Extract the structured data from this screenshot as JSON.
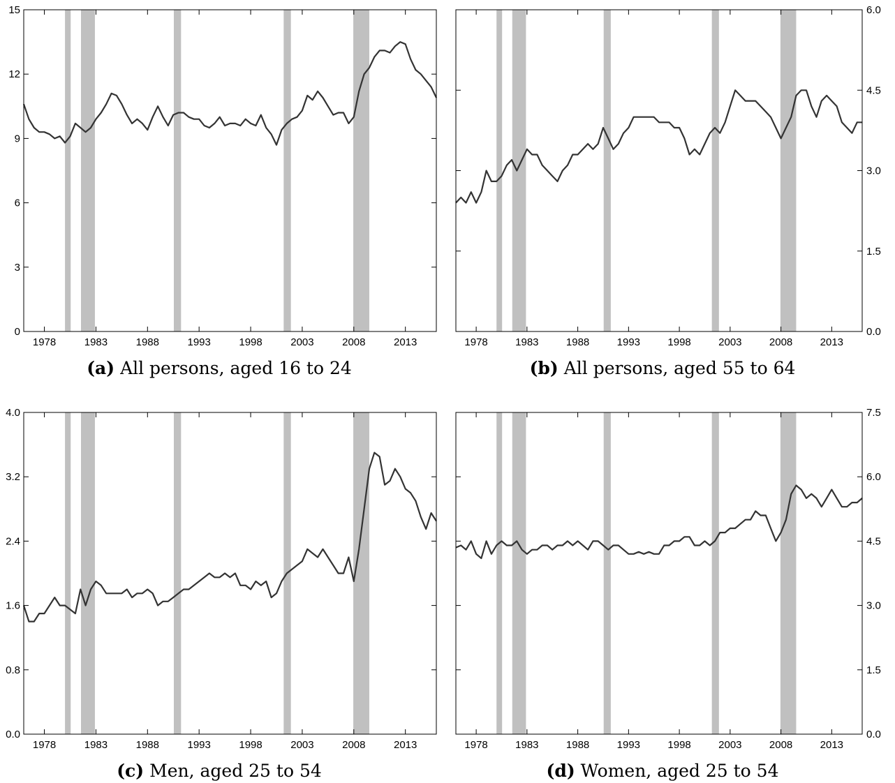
{
  "figure": {
    "line_color": "#333333",
    "recession_color": "#c0c0c0"
  },
  "chart_data": [
    {
      "type": "line",
      "caption_letter": "(a)",
      "caption_text": "All persons, aged 16 to 24",
      "y_axis_side": "left",
      "xlim": [
        1976.0,
        2016.0
      ],
      "ylim": [
        0,
        15
      ],
      "x_ticks": [
        1978,
        1983,
        1988,
        1993,
        1998,
        2003,
        2008,
        2013
      ],
      "y_ticks": [
        0,
        3,
        6,
        9,
        12,
        15
      ],
      "y_tick_labels": [
        "0",
        "3",
        "6",
        "9",
        "12",
        "15"
      ],
      "recessions": [
        [
          1980.0,
          1980.55
        ],
        [
          1981.55,
          1982.9
        ],
        [
          1990.55,
          1991.25
        ],
        [
          2001.2,
          2001.9
        ],
        [
          2007.95,
          2009.5
        ]
      ],
      "series": [
        {
          "x": [
            1976.0,
            1976.5,
            1977.0,
            1977.5,
            1978.0,
            1978.5,
            1979.0,
            1979.5,
            1980.0,
            1980.5,
            1981.0,
            1981.5,
            1982.0,
            1982.5,
            1983.0,
            1983.5,
            1984.0,
            1984.5,
            1985.0,
            1985.5,
            1986.0,
            1986.5,
            1987.0,
            1987.5,
            1988.0,
            1988.5,
            1989.0,
            1989.5,
            1990.0,
            1990.5,
            1991.0,
            1991.5,
            1992.0,
            1992.5,
            1993.0,
            1993.5,
            1994.0,
            1994.5,
            1995.0,
            1995.5,
            1996.0,
            1996.5,
            1997.0,
            1997.5,
            1998.0,
            1998.5,
            1999.0,
            1999.5,
            2000.0,
            2000.5,
            2001.0,
            2001.5,
            2002.0,
            2002.5,
            2003.0,
            2003.5,
            2004.0,
            2004.5,
            2005.0,
            2005.5,
            2006.0,
            2006.5,
            2007.0,
            2007.5,
            2008.0,
            2008.5,
            2009.0,
            2009.5,
            2010.0,
            2010.5,
            2011.0,
            2011.5,
            2012.0,
            2012.5,
            2013.0,
            2013.5,
            2014.0,
            2014.5,
            2015.0,
            2015.5,
            2016.0
          ],
          "values": [
            10.6,
            9.9,
            9.5,
            9.3,
            9.3,
            9.2,
            9.0,
            9.1,
            8.8,
            9.1,
            9.7,
            9.5,
            9.3,
            9.5,
            9.9,
            10.2,
            10.6,
            11.1,
            11.0,
            10.6,
            10.1,
            9.7,
            9.9,
            9.7,
            9.4,
            10.0,
            10.5,
            10.0,
            9.6,
            10.1,
            10.2,
            10.2,
            10.0,
            9.9,
            9.9,
            9.6,
            9.5,
            9.7,
            10.0,
            9.6,
            9.7,
            9.7,
            9.6,
            9.9,
            9.7,
            9.6,
            10.1,
            9.5,
            9.2,
            8.7,
            9.4,
            9.7,
            9.9,
            10.0,
            10.3,
            11.0,
            10.8,
            11.2,
            10.9,
            10.5,
            10.1,
            10.2,
            10.2,
            9.7,
            10.0,
            11.2,
            12.0,
            12.3,
            12.8,
            13.1,
            13.1,
            13.0,
            13.3,
            13.5,
            13.4,
            12.7,
            12.2,
            12.0,
            11.7,
            11.4,
            10.9
          ]
        }
      ]
    },
    {
      "type": "line",
      "caption_letter": "(b)",
      "caption_text": "All persons, aged 55 to 64",
      "y_axis_side": "right",
      "xlim": [
        1976.0,
        2016.0
      ],
      "ylim": [
        0,
        6.0
      ],
      "x_ticks": [
        1978,
        1983,
        1988,
        1993,
        1998,
        2003,
        2008,
        2013
      ],
      "y_ticks": [
        0,
        1.5,
        3.0,
        4.5,
        6.0
      ],
      "y_tick_labels": [
        "0.0",
        "1.5",
        "3.0",
        "4.5",
        "6.0"
      ],
      "recessions": [
        [
          1980.0,
          1980.55
        ],
        [
          1981.55,
          1982.9
        ],
        [
          1990.55,
          1991.25
        ],
        [
          2001.2,
          2001.9
        ],
        [
          2007.95,
          2009.5
        ]
      ],
      "series": [
        {
          "x": [
            1976.0,
            1976.5,
            1977.0,
            1977.5,
            1978.0,
            1978.5,
            1979.0,
            1979.5,
            1980.0,
            1980.5,
            1981.0,
            1981.5,
            1982.0,
            1982.5,
            1983.0,
            1983.5,
            1984.0,
            1984.5,
            1985.0,
            1985.5,
            1986.0,
            1986.5,
            1987.0,
            1987.5,
            1988.0,
            1988.5,
            1989.0,
            1989.5,
            1990.0,
            1990.5,
            1991.0,
            1991.5,
            1992.0,
            1992.5,
            1993.0,
            1993.5,
            1994.0,
            1994.5,
            1995.0,
            1995.5,
            1996.0,
            1996.5,
            1997.0,
            1997.5,
            1998.0,
            1998.5,
            1999.0,
            1999.5,
            2000.0,
            2000.5,
            2001.0,
            2001.5,
            2002.0,
            2002.5,
            2003.0,
            2003.5,
            2004.0,
            2004.5,
            2005.0,
            2005.5,
            2006.0,
            2006.5,
            2007.0,
            2007.5,
            2008.0,
            2008.5,
            2009.0,
            2009.5,
            2010.0,
            2010.5,
            2011.0,
            2011.5,
            2012.0,
            2012.5,
            2013.0,
            2013.5,
            2014.0,
            2014.5,
            2015.0,
            2015.5,
            2016.0
          ],
          "values": [
            2.4,
            2.5,
            2.4,
            2.6,
            2.4,
            2.6,
            3.0,
            2.8,
            2.8,
            2.9,
            3.1,
            3.2,
            3.0,
            3.2,
            3.4,
            3.3,
            3.3,
            3.1,
            3.0,
            2.9,
            2.8,
            3.0,
            3.1,
            3.3,
            3.3,
            3.4,
            3.5,
            3.4,
            3.5,
            3.8,
            3.6,
            3.4,
            3.5,
            3.7,
            3.8,
            4.0,
            4.0,
            4.0,
            4.0,
            4.0,
            3.9,
            3.9,
            3.9,
            3.8,
            3.8,
            3.6,
            3.3,
            3.4,
            3.3,
            3.5,
            3.7,
            3.8,
            3.7,
            3.9,
            4.2,
            4.5,
            4.4,
            4.3,
            4.3,
            4.3,
            4.2,
            4.1,
            4.0,
            3.8,
            3.6,
            3.8,
            4.0,
            4.4,
            4.5,
            4.5,
            4.2,
            4.0,
            4.3,
            4.4,
            4.3,
            4.2,
            3.9,
            3.8,
            3.7,
            3.9,
            3.9
          ]
        }
      ]
    },
    {
      "type": "line",
      "caption_letter": "(c)",
      "caption_text": "Men, aged 25 to 54",
      "y_axis_side": "left",
      "xlim": [
        1976.0,
        2016.0
      ],
      "ylim": [
        0,
        4.0
      ],
      "x_ticks": [
        1978,
        1983,
        1988,
        1993,
        1998,
        2003,
        2008,
        2013
      ],
      "y_ticks": [
        0,
        0.8,
        1.6,
        2.4,
        3.2,
        4.0
      ],
      "y_tick_labels": [
        "0.0",
        "0.8",
        "1.6",
        "2.4",
        "3.2",
        "4.0"
      ],
      "recessions": [
        [
          1980.0,
          1980.55
        ],
        [
          1981.55,
          1982.9
        ],
        [
          1990.55,
          1991.25
        ],
        [
          2001.2,
          2001.9
        ],
        [
          2007.95,
          2009.5
        ]
      ],
      "series": [
        {
          "x": [
            1976.0,
            1976.5,
            1977.0,
            1977.5,
            1978.0,
            1978.5,
            1979.0,
            1979.5,
            1980.0,
            1980.5,
            1981.0,
            1981.5,
            1982.0,
            1982.5,
            1983.0,
            1983.5,
            1984.0,
            1984.5,
            1985.0,
            1985.5,
            1986.0,
            1986.5,
            1987.0,
            1987.5,
            1988.0,
            1988.5,
            1989.0,
            1989.5,
            1990.0,
            1990.5,
            1991.0,
            1991.5,
            1992.0,
            1992.5,
            1993.0,
            1993.5,
            1994.0,
            1994.5,
            1995.0,
            1995.5,
            1996.0,
            1996.5,
            1997.0,
            1997.5,
            1998.0,
            1998.5,
            1999.0,
            1999.5,
            2000.0,
            2000.5,
            2001.0,
            2001.5,
            2002.0,
            2002.5,
            2003.0,
            2003.5,
            2004.0,
            2004.5,
            2005.0,
            2005.5,
            2006.0,
            2006.5,
            2007.0,
            2007.5,
            2008.0,
            2008.5,
            2009.0,
            2009.5,
            2010.0,
            2010.5,
            2011.0,
            2011.5,
            2012.0,
            2012.5,
            2013.0,
            2013.5,
            2014.0,
            2014.5,
            2015.0,
            2015.5,
            2016.0
          ],
          "values": [
            1.6,
            1.4,
            1.4,
            1.5,
            1.5,
            1.6,
            1.7,
            1.6,
            1.6,
            1.55,
            1.5,
            1.8,
            1.6,
            1.8,
            1.9,
            1.85,
            1.75,
            1.75,
            1.75,
            1.75,
            1.8,
            1.7,
            1.75,
            1.75,
            1.8,
            1.75,
            1.6,
            1.65,
            1.65,
            1.7,
            1.75,
            1.8,
            1.8,
            1.85,
            1.9,
            1.95,
            2.0,
            1.95,
            1.95,
            2.0,
            1.95,
            2.0,
            1.85,
            1.85,
            1.8,
            1.9,
            1.85,
            1.9,
            1.7,
            1.75,
            1.9,
            2.0,
            2.05,
            2.1,
            2.15,
            2.3,
            2.25,
            2.2,
            2.3,
            2.2,
            2.1,
            2.0,
            2.0,
            2.2,
            1.9,
            2.3,
            2.8,
            3.3,
            3.5,
            3.45,
            3.1,
            3.15,
            3.3,
            3.2,
            3.05,
            3.0,
            2.9,
            2.7,
            2.55,
            2.75,
            2.65
          ]
        }
      ]
    },
    {
      "type": "line",
      "caption_letter": "(d)",
      "caption_text": "Women, aged 25 to 54",
      "y_axis_side": "right",
      "xlim": [
        1976.0,
        2016.0
      ],
      "ylim": [
        0,
        7.5
      ],
      "x_ticks": [
        1978,
        1983,
        1988,
        1993,
        1998,
        2003,
        2008,
        2013
      ],
      "y_ticks": [
        0,
        1.5,
        3.0,
        4.5,
        6.0,
        7.5
      ],
      "y_tick_labels": [
        "0.0",
        "1.5",
        "3.0",
        "4.5",
        "6.0",
        "7.5"
      ],
      "recessions": [
        [
          1980.0,
          1980.55
        ],
        [
          1981.55,
          1982.9
        ],
        [
          1990.55,
          1991.25
        ],
        [
          2001.2,
          2001.9
        ],
        [
          2007.95,
          2009.5
        ]
      ],
      "series": [
        {
          "x": [
            1976.0,
            1976.5,
            1977.0,
            1977.5,
            1978.0,
            1978.5,
            1979.0,
            1979.5,
            1980.0,
            1980.5,
            1981.0,
            1981.5,
            1982.0,
            1982.5,
            1983.0,
            1983.5,
            1984.0,
            1984.5,
            1985.0,
            1985.5,
            1986.0,
            1986.5,
            1987.0,
            1987.5,
            1988.0,
            1988.5,
            1989.0,
            1989.5,
            1990.0,
            1990.5,
            1991.0,
            1991.5,
            1992.0,
            1992.5,
            1993.0,
            1993.5,
            1994.0,
            1994.5,
            1995.0,
            1995.5,
            1996.0,
            1996.5,
            1997.0,
            1997.5,
            1998.0,
            1998.5,
            1999.0,
            1999.5,
            2000.0,
            2000.5,
            2001.0,
            2001.5,
            2002.0,
            2002.5,
            2003.0,
            2003.5,
            2004.0,
            2004.5,
            2005.0,
            2005.5,
            2006.0,
            2006.5,
            2007.0,
            2007.5,
            2008.0,
            2008.5,
            2009.0,
            2009.5,
            2010.0,
            2010.5,
            2011.0,
            2011.5,
            2012.0,
            2012.5,
            2013.0,
            2013.5,
            2014.0,
            2014.5,
            2015.0,
            2015.5,
            2016.0
          ],
          "values": [
            4.35,
            4.4,
            4.3,
            4.5,
            4.2,
            4.1,
            4.5,
            4.2,
            4.4,
            4.5,
            4.4,
            4.4,
            4.5,
            4.3,
            4.2,
            4.3,
            4.3,
            4.4,
            4.4,
            4.3,
            4.4,
            4.4,
            4.5,
            4.4,
            4.5,
            4.4,
            4.3,
            4.5,
            4.5,
            4.4,
            4.3,
            4.4,
            4.4,
            4.3,
            4.2,
            4.2,
            4.25,
            4.2,
            4.25,
            4.2,
            4.2,
            4.4,
            4.4,
            4.5,
            4.5,
            4.6,
            4.6,
            4.4,
            4.4,
            4.5,
            4.4,
            4.5,
            4.7,
            4.7,
            4.8,
            4.8,
            4.9,
            5.0,
            5.0,
            5.2,
            5.1,
            5.1,
            4.8,
            4.5,
            4.7,
            5.0,
            5.6,
            5.8,
            5.7,
            5.5,
            5.6,
            5.5,
            5.3,
            5.5,
            5.7,
            5.5,
            5.3,
            5.3,
            5.4,
            5.4,
            5.5
          ]
        }
      ]
    }
  ]
}
